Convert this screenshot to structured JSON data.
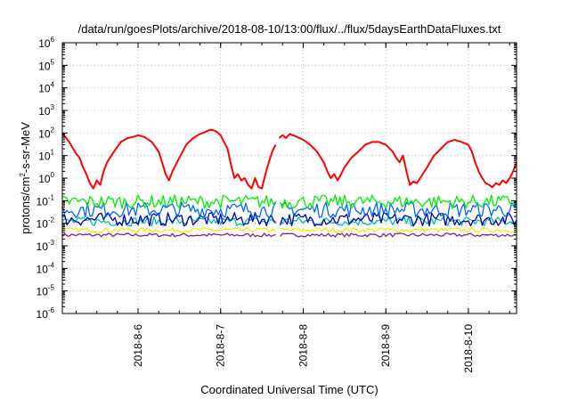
{
  "chart_data": {
    "type": "line",
    "title": "/data/run/goesPlots/archive/2018-08-10/13:00/flux/../flux/5daysEarthDataFluxes.txt",
    "xlabel": "Coordinated Universal Time (UTC)",
    "ylabel": {
      "prefix": "protons/cm",
      "sup": "2",
      "suffix": "-s-sr-MeV"
    },
    "yscale": "log",
    "ylim_exp": [
      -6,
      6
    ],
    "y_tick_exponents": [
      -6,
      -5,
      -4,
      -3,
      -2,
      -1,
      0,
      1,
      2,
      3,
      4,
      5,
      6
    ],
    "y_tick_base": "10",
    "xlim": [
      "2018-08-05 02:00",
      "2018-08-10 14:00"
    ],
    "x_ticks": [
      {
        "value": "2018-08-06",
        "label": "2018-8-6"
      },
      {
        "value": "2018-08-07",
        "label": "2018-8-7"
      },
      {
        "value": "2018-08-08",
        "label": "2018-8-8"
      },
      {
        "value": "2018-08-09",
        "label": "2018-8-9"
      },
      {
        "value": "2018-08-10",
        "label": "2018-8-10"
      }
    ],
    "grid": true,
    "data_gap": [
      "2018-08-07 16:30",
      "2018-08-07 17:00"
    ],
    "series": [
      {
        "color": "#ff0000",
        "points": [
          [
            "2018-08-05 02:00",
            100
          ],
          [
            "2018-08-05 04:00",
            40
          ],
          [
            "2018-08-05 06:00",
            12
          ],
          [
            "2018-08-05 07:00",
            8
          ],
          [
            "2018-08-05 08:00",
            3
          ],
          [
            "2018-08-05 09:00",
            1.5
          ],
          [
            "2018-08-05 10:00",
            0.6
          ],
          [
            "2018-08-05 11:00",
            0.35
          ],
          [
            "2018-08-05 12:00",
            0.8
          ],
          [
            "2018-08-05 13:00",
            0.5
          ],
          [
            "2018-08-05 14:00",
            2
          ],
          [
            "2018-08-05 15:00",
            5
          ],
          [
            "2018-08-05 17:00",
            15
          ],
          [
            "2018-08-05 19:00",
            40
          ],
          [
            "2018-08-05 21:00",
            60
          ],
          [
            "2018-08-05 23:00",
            70
          ],
          [
            "2018-08-06 00:00",
            80
          ],
          [
            "2018-08-06 02:00",
            65
          ],
          [
            "2018-08-06 04:00",
            40
          ],
          [
            "2018-08-06 06:00",
            15
          ],
          [
            "2018-08-06 07:00",
            5
          ],
          [
            "2018-08-06 08:00",
            1.5
          ],
          [
            "2018-08-06 09:00",
            0.8
          ],
          [
            "2018-08-06 10:00",
            2
          ],
          [
            "2018-08-06 12:00",
            8
          ],
          [
            "2018-08-06 14:00",
            30
          ],
          [
            "2018-08-06 16:00",
            60
          ],
          [
            "2018-08-06 18:00",
            90
          ],
          [
            "2018-08-06 20:00",
            120
          ],
          [
            "2018-08-06 21:00",
            140
          ],
          [
            "2018-08-06 22:00",
            130
          ],
          [
            "2018-08-06 23:00",
            110
          ],
          [
            "2018-08-07 00:00",
            80
          ],
          [
            "2018-08-07 01:00",
            40
          ],
          [
            "2018-08-07 02:00",
            20
          ],
          [
            "2018-08-07 03:00",
            4
          ],
          [
            "2018-08-07 04:00",
            1
          ],
          [
            "2018-08-07 05:00",
            1.5
          ],
          [
            "2018-08-07 06:00",
            0.8
          ],
          [
            "2018-08-07 07:00",
            1
          ],
          [
            "2018-08-07 08:00",
            0.5
          ],
          [
            "2018-08-07 09:00",
            0.35
          ],
          [
            "2018-08-07 10:00",
            1
          ],
          [
            "2018-08-07 11:00",
            0.4
          ],
          [
            "2018-08-07 12:00",
            0.35
          ],
          [
            "2018-08-07 13:00",
            1.5
          ],
          [
            "2018-08-07 14:00",
            5
          ],
          [
            "2018-08-07 15:00",
            15
          ],
          [
            "2018-08-07 16:00",
            30
          ],
          [
            "2018-08-07 17:00",
            60
          ],
          [
            "2018-08-07 18:00",
            80
          ],
          [
            "2018-08-07 19:00",
            60
          ],
          [
            "2018-08-07 20:00",
            90
          ],
          [
            "2018-08-07 22:00",
            70
          ],
          [
            "2018-08-08 00:00",
            50
          ],
          [
            "2018-08-08 02:00",
            30
          ],
          [
            "2018-08-08 04:00",
            15
          ],
          [
            "2018-08-08 06:00",
            5
          ],
          [
            "2018-08-08 07:00",
            2
          ],
          [
            "2018-08-08 08:00",
            1
          ],
          [
            "2018-08-08 09:00",
            1.5
          ],
          [
            "2018-08-08 10:00",
            0.8
          ],
          [
            "2018-08-08 11:00",
            1.5
          ],
          [
            "2018-08-08 12:00",
            3
          ],
          [
            "2018-08-08 14:00",
            8
          ],
          [
            "2018-08-08 16:00",
            15
          ],
          [
            "2018-08-08 18:00",
            30
          ],
          [
            "2018-08-08 20:00",
            40
          ],
          [
            "2018-08-08 22:00",
            40
          ],
          [
            "2018-08-09 00:00",
            30
          ],
          [
            "2018-08-09 02:00",
            15
          ],
          [
            "2018-08-09 03:00",
            8
          ],
          [
            "2018-08-09 04:00",
            5
          ],
          [
            "2018-08-09 05:00",
            10
          ],
          [
            "2018-08-09 06:00",
            2
          ],
          [
            "2018-08-09 07:00",
            0.5
          ],
          [
            "2018-08-09 08:00",
            0.7
          ],
          [
            "2018-08-09 09:00",
            0.6
          ],
          [
            "2018-08-09 10:00",
            1
          ],
          [
            "2018-08-09 12:00",
            3
          ],
          [
            "2018-08-09 14:00",
            10
          ],
          [
            "2018-08-09 16:00",
            20
          ],
          [
            "2018-08-09 18:00",
            40
          ],
          [
            "2018-08-09 20:00",
            50
          ],
          [
            "2018-08-09 22:00",
            40
          ],
          [
            "2018-08-10 00:00",
            30
          ],
          [
            "2018-08-10 01:00",
            15
          ],
          [
            "2018-08-10 02:00",
            5
          ],
          [
            "2018-08-10 03:00",
            2
          ],
          [
            "2018-08-10 04:00",
            1
          ],
          [
            "2018-08-10 05:00",
            0.6
          ],
          [
            "2018-08-10 06:00",
            0.5
          ],
          [
            "2018-08-10 07:00",
            0.4
          ],
          [
            "2018-08-10 08:00",
            0.6
          ],
          [
            "2018-08-10 09:00",
            0.5
          ],
          [
            "2018-08-10 10:00",
            0.8
          ],
          [
            "2018-08-10 11:00",
            0.6
          ],
          [
            "2018-08-10 12:00",
            1
          ],
          [
            "2018-08-10 13:00",
            2
          ],
          [
            "2018-08-10 14:00",
            5
          ]
        ]
      },
      {
        "color": "#00ee00",
        "level": 0.09,
        "spread": 0.3
      },
      {
        "color": "#0066ff",
        "level": 0.04,
        "spread": 0.35
      },
      {
        "color": "#0000aa",
        "level": 0.015,
        "spread": 0.3
      },
      {
        "color": "#00bbbb",
        "level": 0.012,
        "spread": 0.2
      },
      {
        "color": "#eeee00",
        "level": 0.005,
        "spread": 0.1
      },
      {
        "color": "#8b1a8b",
        "level": 0.003,
        "spread": 0.08
      }
    ]
  }
}
